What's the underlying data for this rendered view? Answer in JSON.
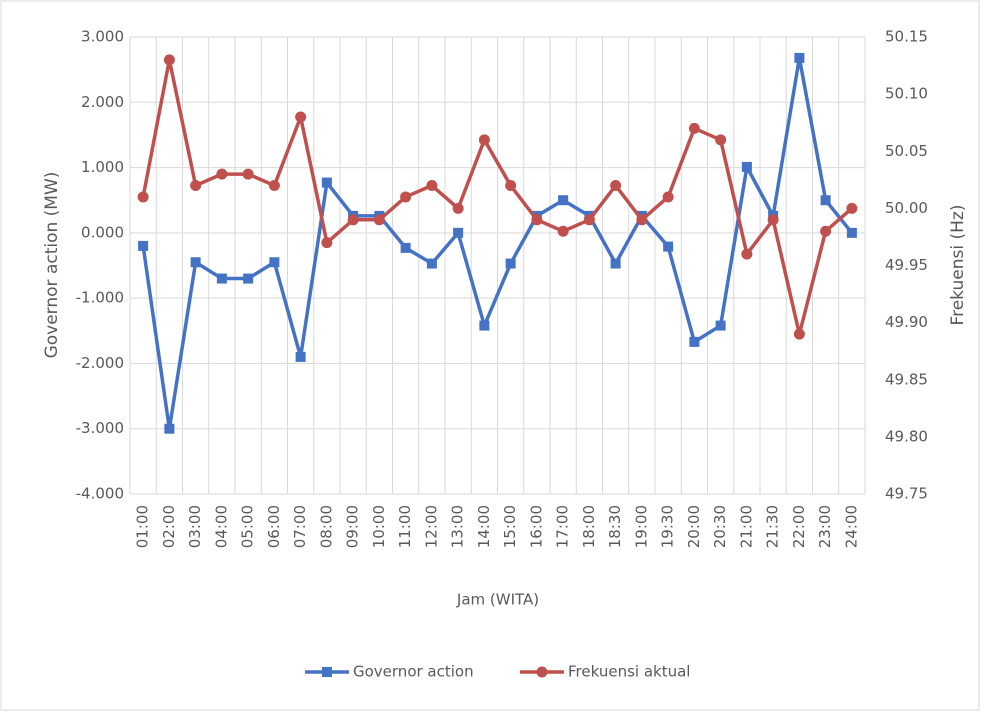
{
  "chart_data": {
    "type": "line",
    "x_label": "Jam (WITA)",
    "y_label": "Governor action (MW)",
    "y2_label": "Frekuensi (Hz)",
    "categories": [
      "01:00",
      "02:00",
      "03:00",
      "04:00",
      "05:00",
      "06:00",
      "07:00",
      "08:00",
      "09:00",
      "10:00",
      "11:00",
      "12:00",
      "13:00",
      "14:00",
      "15:00",
      "16:00",
      "17:00",
      "18:00",
      "18:30",
      "19:00",
      "19:30",
      "20:00",
      "20:30",
      "21:00",
      "21:30",
      "22:00",
      "23:00",
      "24:00"
    ],
    "series": [
      {
        "name": "Governor action",
        "color": "#4472c4",
        "marker": "square",
        "values": [
          -0.2,
          -3.0,
          -0.45,
          -0.7,
          -0.7,
          -0.45,
          -1.9,
          0.77,
          0.26,
          0.26,
          -0.23,
          -0.47,
          0,
          -1.42,
          -0.47,
          0.26,
          0.5,
          0.26,
          -0.47,
          0.26,
          -0.21,
          -1.67,
          -1.42,
          1.01,
          0.26,
          2.68,
          0.5,
          0
        ]
      },
      {
        "name": "Frekuensi aktual",
        "color": "#c0504d",
        "marker": "circle",
        "axis": "y2",
        "values": [
          50.01,
          50.13,
          50.02,
          50.03,
          50.03,
          50.02,
          50.08,
          49.97,
          49.99,
          49.99,
          50.01,
          50.02,
          50.0,
          50.06,
          50.02,
          49.99,
          49.98,
          49.99,
          50.02,
          49.99,
          50.01,
          50.07,
          50.06,
          49.96,
          49.99,
          49.89,
          49.98,
          50.0
        ]
      }
    ],
    "ylim": [
      -4,
      3
    ],
    "yticks": [
      {
        "value": -4,
        "label": "-4.000"
      },
      {
        "value": -3,
        "label": "-3.000"
      },
      {
        "value": -2,
        "label": "-2.000"
      },
      {
        "value": -1,
        "label": "-1.000"
      },
      {
        "value": 0,
        "label": "0.000"
      },
      {
        "value": 1,
        "label": "1.000"
      },
      {
        "value": 2,
        "label": "2.000"
      },
      {
        "value": 3,
        "label": "3.000"
      }
    ],
    "y2lim": [
      49.75,
      50.15
    ],
    "y2ticks": [
      49.75,
      {
        "value": 49.8,
        "label": "49.80"
      },
      49.85,
      {
        "value": 49.9,
        "label": "49.90"
      },
      49.95,
      {
        "value": 50,
        "label": "50.00"
      },
      50.05,
      {
        "value": 50.1,
        "label": "50.10"
      },
      50.15
    ],
    "grid": true,
    "legend": "bottom"
  }
}
